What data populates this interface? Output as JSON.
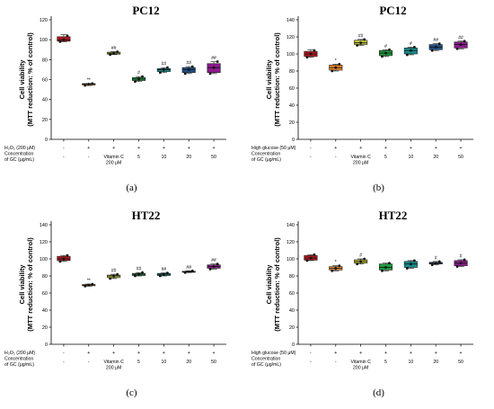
{
  "chart_data": [
    {
      "type": "box",
      "title": "PC12",
      "ylabel": [
        "Cell viability",
        "(MTT reduction: % of control)"
      ],
      "ylim": [
        0,
        120
      ],
      "yticks": [
        0,
        20,
        40,
        60,
        80,
        100,
        120
      ],
      "panel_label": "(a)",
      "row_labels": [
        "H₂O₂ (200 μM)",
        "Concentration",
        "of GC (μg/mL)"
      ],
      "treatment_row": [
        "-",
        "+",
        "+",
        "+",
        "+",
        "+",
        "+"
      ],
      "conc_row": [
        "-",
        "-",
        "Vitamin C",
        "5",
        "10",
        "20",
        "50"
      ],
      "conc_extra": [
        "",
        "",
        "200 μM",
        "",
        "",
        "",
        ""
      ],
      "significance": [
        "",
        "**",
        "##",
        "#",
        "##",
        "##",
        "##"
      ],
      "colors": [
        "#b0191e",
        "#e8862a",
        "#c4c43a",
        "#1f9a3e",
        "#138c8c",
        "#1f4f8a",
        "#8b1a8b"
      ],
      "boxes": [
        {
          "min": 98,
          "q1": 98.5,
          "median": 100,
          "q3": 103,
          "max": 105,
          "points": [
            98,
            100,
            104
          ]
        },
        {
          "min": 54,
          "q1": 54.5,
          "median": 55.5,
          "q3": 56,
          "max": 56,
          "points": [
            54,
            55.5,
            56
          ]
        },
        {
          "min": 85,
          "q1": 85.5,
          "median": 86.5,
          "q3": 87.5,
          "max": 88,
          "points": [
            85,
            86.5,
            88
          ]
        },
        {
          "min": 58,
          "q1": 59,
          "median": 60.5,
          "q3": 62,
          "max": 63,
          "points": [
            58,
            60.5,
            63
          ]
        },
        {
          "min": 67,
          "q1": 68,
          "median": 70,
          "q3": 71,
          "max": 72,
          "points": [
            67,
            70,
            72
          ]
        },
        {
          "min": 66,
          "q1": 67,
          "median": 70,
          "q3": 72,
          "max": 73,
          "points": [
            66,
            70,
            73
          ]
        },
        {
          "min": 66,
          "q1": 67,
          "median": 72,
          "q3": 76,
          "max": 78,
          "points": [
            66,
            72,
            78
          ]
        }
      ]
    },
    {
      "type": "box",
      "title": "PC12",
      "ylabel": [
        "Cell viability",
        "(MTT reduction: % of control)"
      ],
      "ylim": [
        0,
        140
      ],
      "yticks": [
        0,
        20,
        40,
        60,
        80,
        100,
        120,
        140
      ],
      "panel_label": "(b)",
      "row_labels": [
        "High glucose (50 μM)",
        "Concentration",
        "of GC (μg/mL)"
      ],
      "treatment_row": [
        "-",
        "+",
        "+",
        "+",
        "+",
        "+",
        "+"
      ],
      "conc_row": [
        "-",
        "-",
        "Vitamin C",
        "5",
        "10",
        "20",
        "50"
      ],
      "conc_extra": [
        "",
        "",
        "200 μM",
        "",
        "",
        "",
        ""
      ],
      "significance": [
        "",
        "*",
        "##",
        "#",
        "#",
        "##",
        "##"
      ],
      "colors": [
        "#b0191e",
        "#e8862a",
        "#c4c43a",
        "#1f9a3e",
        "#138c8c",
        "#1f4f8a",
        "#8b1a8b"
      ],
      "boxes": [
        {
          "min": 96,
          "q1": 97,
          "median": 100,
          "q3": 103,
          "max": 105,
          "points": [
            96,
            100,
            104
          ]
        },
        {
          "min": 80,
          "q1": 81,
          "median": 84,
          "q3": 87,
          "max": 88,
          "points": [
            80,
            84,
            88
          ]
        },
        {
          "min": 110,
          "q1": 111,
          "median": 113,
          "q3": 116,
          "max": 117,
          "points": [
            110,
            113,
            117
          ]
        },
        {
          "min": 97,
          "q1": 98,
          "median": 101,
          "q3": 104,
          "max": 105,
          "points": [
            97,
            101,
            105
          ]
        },
        {
          "min": 99,
          "q1": 100,
          "median": 104,
          "q3": 107,
          "max": 108,
          "points": [
            99,
            104,
            108
          ]
        },
        {
          "min": 104,
          "q1": 105,
          "median": 108,
          "q3": 111,
          "max": 112,
          "points": [
            104,
            108,
            112
          ]
        },
        {
          "min": 106,
          "q1": 107,
          "median": 111,
          "q3": 114,
          "max": 115,
          "points": [
            106,
            111,
            115
          ]
        }
      ]
    },
    {
      "type": "box",
      "title": "HT22",
      "ylabel": [
        "Cell viability",
        "(MTT reduction: % of control)"
      ],
      "ylim": [
        0,
        140
      ],
      "yticks": [
        0,
        20,
        40,
        60,
        80,
        100,
        120,
        140
      ],
      "panel_label": "(c)",
      "row_labels": [
        "H₂O₂ (200 μM)",
        "Concentration",
        "of GC (μg/mL)"
      ],
      "treatment_row": [
        "-",
        "+",
        "+",
        "+",
        "+",
        "+",
        "+"
      ],
      "conc_row": [
        "-",
        "-",
        "Vitamin C",
        "5",
        "10",
        "20",
        "50"
      ],
      "conc_extra": [
        "",
        "",
        "200 μM",
        "",
        "",
        "",
        ""
      ],
      "significance": [
        "",
        "**",
        "##",
        "##",
        "##",
        "##",
        "##"
      ],
      "colors": [
        "#b0191e",
        "#e8862a",
        "#c4c43a",
        "#1f9a3e",
        "#138c8c",
        "#1f4f8a",
        "#8b1a8b"
      ],
      "boxes": [
        {
          "min": 97,
          "q1": 98,
          "median": 100,
          "q3": 103,
          "max": 104,
          "points": [
            97,
            100,
            104
          ]
        },
        {
          "min": 68,
          "q1": 68.5,
          "median": 69.5,
          "q3": 70,
          "max": 70.5,
          "points": [
            68,
            69.5,
            70.5
          ]
        },
        {
          "min": 77,
          "q1": 78,
          "median": 80,
          "q3": 81,
          "max": 82,
          "points": [
            77,
            80,
            82
          ]
        },
        {
          "min": 80,
          "q1": 80.5,
          "median": 82,
          "q3": 83,
          "max": 84,
          "points": [
            80,
            82,
            84
          ]
        },
        {
          "min": 80,
          "q1": 80.5,
          "median": 82,
          "q3": 83,
          "max": 83.5,
          "points": [
            80,
            82,
            83.5
          ]
        },
        {
          "min": 84,
          "q1": 84.5,
          "median": 85,
          "q3": 85.5,
          "max": 86,
          "points": [
            84,
            85,
            86
          ]
        },
        {
          "min": 88,
          "q1": 89,
          "median": 91,
          "q3": 93,
          "max": 94,
          "points": [
            88,
            91,
            94
          ]
        }
      ]
    },
    {
      "type": "box",
      "title": "HT22",
      "ylabel": [
        "Cell viability",
        "(MTT reduction: % of control)"
      ],
      "ylim": [
        0,
        140
      ],
      "yticks": [
        0,
        20,
        40,
        60,
        80,
        100,
        120,
        140
      ],
      "panel_label": "(d)",
      "row_labels": [
        "High glucose (50 μM)",
        "Concentration",
        "of GC (μg/mL)"
      ],
      "treatment_row": [
        "-",
        "+",
        "+",
        "+",
        "+",
        "+",
        "+"
      ],
      "conc_row": [
        "-",
        "-",
        "Vitamin C",
        "5",
        "10",
        "20",
        "50"
      ],
      "conc_extra": [
        "",
        "",
        "200 μM",
        "",
        "",
        "",
        ""
      ],
      "significance": [
        "",
        "*",
        "#",
        "",
        "",
        "#",
        "#"
      ],
      "colors": [
        "#b0191e",
        "#e8862a",
        "#c4c43a",
        "#1f9a3e",
        "#138c8c",
        "#1f4f8a",
        "#8b1a8b"
      ],
      "boxes": [
        {
          "min": 98,
          "q1": 98.5,
          "median": 101,
          "q3": 104,
          "max": 105,
          "points": [
            98,
            101,
            105
          ]
        },
        {
          "min": 86,
          "q1": 87,
          "median": 89,
          "q3": 91,
          "max": 92,
          "points": [
            86,
            89,
            92
          ]
        },
        {
          "min": 94,
          "q1": 95,
          "median": 97,
          "q3": 99,
          "max": 100,
          "points": [
            94,
            97,
            100
          ]
        },
        {
          "min": 86,
          "q1": 87,
          "median": 90,
          "q3": 94,
          "max": 95,
          "points": [
            86,
            90,
            95
          ]
        },
        {
          "min": 89,
          "q1": 90,
          "median": 94,
          "q3": 97,
          "max": 98,
          "points": [
            89,
            94,
            98
          ]
        },
        {
          "min": 93,
          "q1": 94,
          "median": 95,
          "q3": 96,
          "max": 97,
          "points": [
            93,
            95,
            97
          ]
        },
        {
          "min": 91,
          "q1": 92,
          "median": 95,
          "q3": 98,
          "max": 99,
          "points": [
            91,
            95,
            99
          ]
        }
      ]
    }
  ]
}
